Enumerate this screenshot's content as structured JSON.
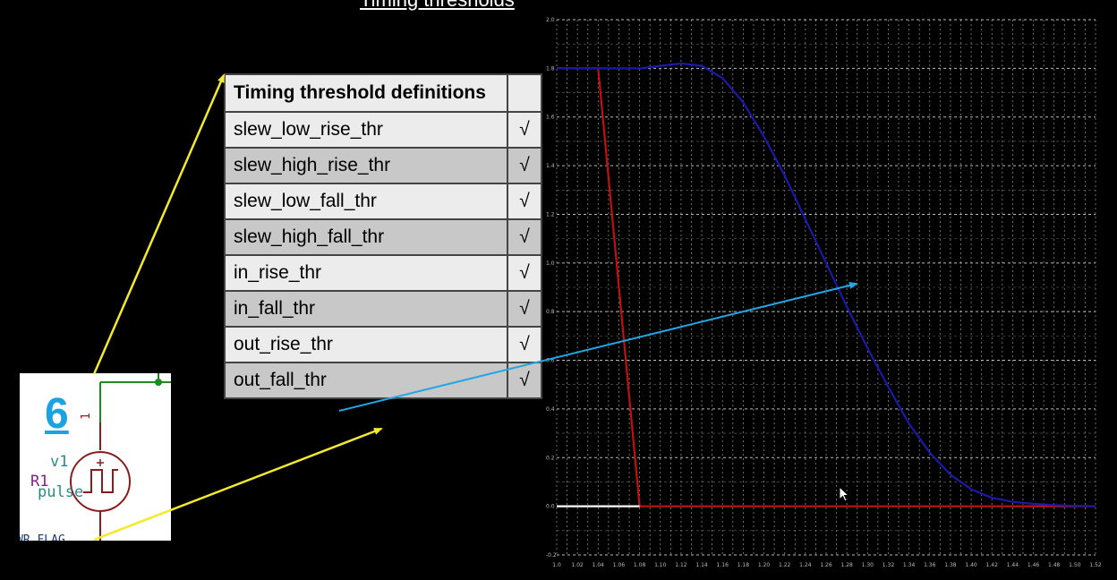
{
  "slide": {
    "title": "Timing thresholds"
  },
  "schematic": {
    "node_number": "6",
    "component_name": "v1",
    "resistor_label": "R1",
    "source_value": "pulse",
    "pin_number": "1",
    "flag_label": "WR_FLAG"
  },
  "table": {
    "header": "Timing threshold definitions",
    "header_check": "",
    "rows": [
      {
        "name": "slew_low_rise_thr",
        "check": "√"
      },
      {
        "name": "slew_high_rise_thr",
        "check": "√"
      },
      {
        "name": "slew_low_fall_thr",
        "check": "√"
      },
      {
        "name": "slew_high_fall_thr",
        "check": "√"
      },
      {
        "name": "in_rise_thr",
        "check": "√"
      },
      {
        "name": "in_fall_thr",
        "check": "√"
      },
      {
        "name": "out_rise_thr",
        "check": "√"
      },
      {
        "name": "out_fall_thr",
        "check": "√"
      }
    ]
  },
  "chart_data": {
    "type": "line",
    "title": "",
    "xlabel": "",
    "ylabel": "",
    "xlim": [
      1.0,
      1.52
    ],
    "ylim": [
      -0.2,
      2.0
    ],
    "grid": true,
    "y_ticks": [
      "-0.2",
      "0.0",
      "0.2",
      "0.4",
      "0.6",
      "0.8",
      "1.0",
      "1.2",
      "1.4",
      "1.6",
      "1.8",
      "2.0"
    ],
    "x_ticks": [
      "1.0",
      "1.02",
      "1.04",
      "1.06",
      "1.08",
      "1.10",
      "1.12",
      "1.14",
      "1.16",
      "1.18",
      "1.20",
      "1.22",
      "1.24",
      "1.26",
      "1.28",
      "1.30",
      "1.32",
      "1.34",
      "1.36",
      "1.38",
      "1.40",
      "1.42",
      "1.44",
      "1.46",
      "1.48",
      "1.50",
      "1.52"
    ],
    "series": [
      {
        "color": "#c01010",
        "x": [
          1.0,
          1.02,
          1.03,
          1.04,
          1.06,
          1.08,
          1.2,
          1.3,
          1.4,
          1.52
        ],
        "y": [
          1.8,
          1.8,
          1.8,
          1.8,
          0.9,
          0.0,
          0.0,
          0.0,
          0.0,
          0.0
        ]
      },
      {
        "color": "#1a1aa8",
        "x": [
          1.0,
          1.02,
          1.04,
          1.06,
          1.08,
          1.1,
          1.12,
          1.14,
          1.16,
          1.18,
          1.2,
          1.22,
          1.24,
          1.26,
          1.28,
          1.3,
          1.32,
          1.34,
          1.36,
          1.38,
          1.4,
          1.42,
          1.44,
          1.46,
          1.48,
          1.5,
          1.52
        ],
        "y": [
          1.8,
          1.8,
          1.8,
          1.8,
          1.8,
          1.81,
          1.82,
          1.81,
          1.76,
          1.66,
          1.52,
          1.36,
          1.18,
          1.0,
          0.82,
          0.65,
          0.49,
          0.34,
          0.22,
          0.13,
          0.07,
          0.035,
          0.018,
          0.01,
          0.005,
          0.002,
          0.0
        ]
      },
      {
        "color": "#ffffff",
        "x": [
          1.0,
          1.08
        ],
        "y": [
          0.0,
          0.0
        ]
      }
    ]
  },
  "colors": {
    "background": "#000000",
    "yellow_arrow": "#f2ea2a",
    "blue_arrow": "#22a6e6",
    "wire_green": "#1e8a1e",
    "component_red": "#8a1c1c"
  }
}
